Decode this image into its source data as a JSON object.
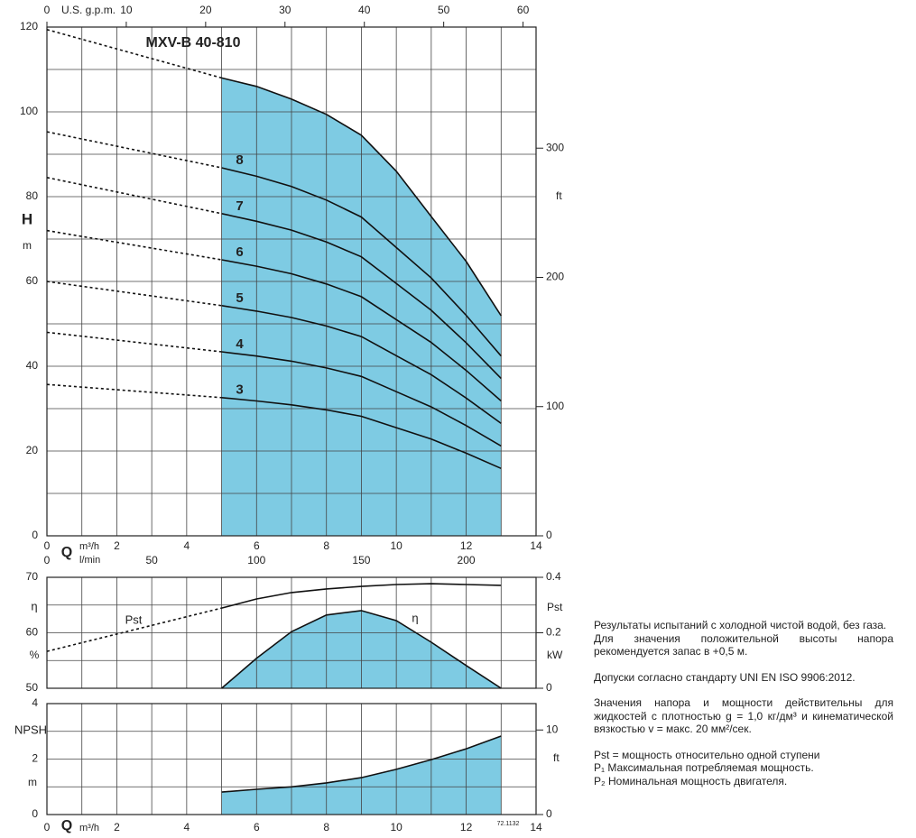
{
  "chart_data": [
    {
      "type": "line",
      "title": "MXV-B 40-810",
      "x_label": "Q",
      "x_unit": "m³/h",
      "x2_label": "U.S. g.p.m.",
      "x3_label": "l/min",
      "y_label": "H",
      "y_unit": "m",
      "y2_label": "ft",
      "xlim": [
        0,
        14
      ],
      "ylim": [
        0,
        120
      ],
      "y2lim": [
        0,
        393.7
      ],
      "x2lim": [
        0,
        61.64
      ],
      "x3lim": [
        0,
        233.33
      ],
      "xticks": [
        0,
        2,
        4,
        6,
        8,
        10,
        12,
        14
      ],
      "minor_xticks": [
        1,
        3,
        5,
        7,
        9,
        11,
        13
      ],
      "yticks": [
        0,
        20,
        40,
        60,
        80,
        100,
        120
      ],
      "minor_yticks": [
        10,
        30,
        50,
        70,
        90,
        110
      ],
      "y2ticks": [
        0,
        100,
        200,
        300
      ],
      "x2ticks": [
        0,
        10,
        20,
        30,
        40,
        50,
        60
      ],
      "x3ticks": [
        0,
        50,
        100,
        150,
        200
      ],
      "grid": true,
      "fill_color": "#7ecbe3",
      "line_color": "#111111",
      "x": [
        5,
        6,
        7,
        8,
        9,
        10,
        11,
        12,
        13
      ],
      "extrapolated_x": [
        0,
        5
      ],
      "series": [
        {
          "values": [
            108,
            106,
            103,
            99.4,
            94.5,
            86,
            75.3,
            64.7,
            51.9
          ],
          "extrapolated": [
            119.4,
            108
          ],
          "fill": true
        },
        {
          "name": "8",
          "values": [
            86.8,
            84.8,
            82.4,
            79.2,
            75.2,
            68.0,
            60.8,
            52.0,
            42.4
          ],
          "extrapolated": [
            95.3,
            86.8
          ]
        },
        {
          "name": "7",
          "values": [
            76.0,
            74.2,
            72.1,
            69.3,
            65.8,
            59.5,
            53.2,
            45.5,
            37.1
          ],
          "extrapolated": [
            84.5,
            76.0
          ]
        },
        {
          "name": "6",
          "values": [
            65.1,
            63.6,
            61.8,
            59.4,
            56.4,
            51.0,
            45.6,
            39.0,
            31.8
          ],
          "extrapolated": [
            72,
            65.1
          ]
        },
        {
          "name": "5",
          "values": [
            54.3,
            53.0,
            51.5,
            49.5,
            47.0,
            42.5,
            38.0,
            32.5,
            26.5
          ],
          "extrapolated": [
            60,
            54.3
          ]
        },
        {
          "name": "4",
          "values": [
            43.4,
            42.4,
            41.2,
            39.6,
            37.6,
            34.0,
            30.4,
            26.0,
            21.2
          ],
          "extrapolated": [
            48,
            43.4
          ]
        },
        {
          "name": "3",
          "values": [
            32.6,
            31.8,
            30.9,
            29.7,
            28.2,
            25.5,
            22.8,
            19.5,
            15.9
          ],
          "extrapolated": [
            35.7,
            32.6
          ]
        }
      ]
    },
    {
      "type": "line",
      "y_label": "η",
      "y_unit": "%",
      "y2_label": "Pst",
      "y2_unit": "kW",
      "xlim": [
        0,
        14
      ],
      "ylim": [
        50,
        70
      ],
      "y2lim": [
        0,
        0.4
      ],
      "minor_xticks": [
        1,
        2,
        3,
        4,
        5,
        6,
        7,
        8,
        9,
        10,
        11,
        12,
        13
      ],
      "yticks": [
        50,
        60,
        70
      ],
      "minor_yticks": [
        55,
        65
      ],
      "y2ticks": [
        0,
        0.2,
        0.4
      ],
      "grid": true,
      "fill_color": "#7ecbe3",
      "line_color": "#111111",
      "x": [
        5,
        6,
        7,
        8,
        9,
        10,
        11,
        12,
        13
      ],
      "extrapolated_x": [
        0,
        5
      ],
      "series": [
        {
          "name": "η",
          "values": [
            50,
            55.4,
            60.2,
            63.2,
            64.0,
            62.2,
            58.3,
            54.1,
            50
          ],
          "fill": true
        },
        {
          "name": "Pst",
          "axis": "y2",
          "values": [
            0.289,
            0.322,
            0.345,
            0.358,
            0.367,
            0.374,
            0.377,
            0.374,
            0.371
          ],
          "extrapolated": [
            0.133,
            0.289
          ]
        }
      ]
    },
    {
      "type": "line",
      "code": "72.1132",
      "x_label": "Q",
      "x_unit": "m³/h",
      "y_label": "NPSH",
      "y_unit": "m",
      "y2_label": "ft",
      "xlim": [
        0,
        14
      ],
      "ylim": [
        0,
        4
      ],
      "y2lim": [
        0,
        13.12
      ],
      "xticks": [
        0,
        2,
        4,
        6,
        8,
        10,
        12,
        14
      ],
      "minor_xticks": [
        1,
        3,
        5,
        7,
        9,
        11,
        13
      ],
      "yticks": [
        0,
        2,
        4
      ],
      "minor_yticks": [
        1,
        3
      ],
      "y2ticks": [
        0,
        10
      ],
      "grid": true,
      "fill_color": "#7ecbe3",
      "line_color": "#111111",
      "x": [
        5,
        6,
        7,
        8,
        9,
        10,
        11,
        12,
        13
      ],
      "series": [
        {
          "values": [
            0.81,
            0.91,
            1.0,
            1.14,
            1.33,
            1.63,
            1.98,
            2.37,
            2.83
          ],
          "fill": true
        }
      ]
    }
  ],
  "notes": [
    [
      "Результаты испытаний с холодной чистой водой, без газа.",
      "Для значения положительной высоты напора рекомендуется запас в +0,5 м."
    ],
    [
      "Допуски согласно стандарту UNI EN ISO 9906:2012."
    ],
    [
      "Значения напора и мощности действительны для жидкостей с плотностью g = 1,0 кг/дм³ и кинематической вязкостью v = макс. 20 мм²/сек."
    ],
    [
      "Pst = мощность относительно одной ступени",
      "P₁  Максимальная потребляемая мощность.",
      "P₂ Номинальная мощность двигателя."
    ]
  ]
}
